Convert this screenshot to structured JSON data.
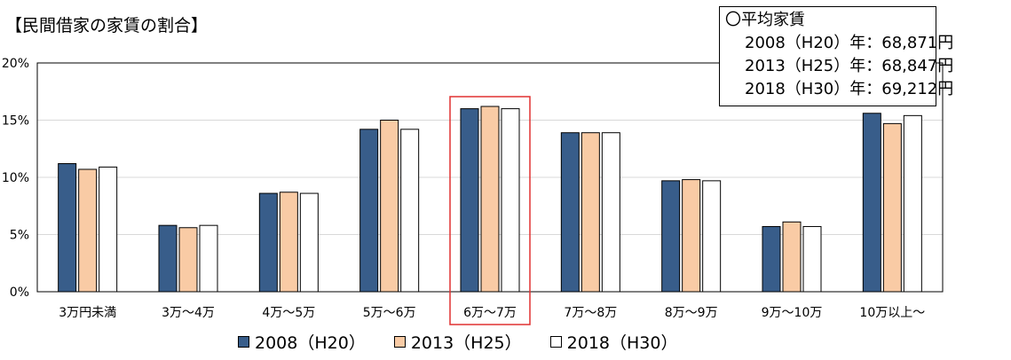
{
  "page": {
    "title": "【民間借家の家賃の割合】"
  },
  "average_box": {
    "header": "〇平均家賃",
    "lines": [
      "2008（H20）年：68,871円",
      "2013（H25）年：68,847円",
      "2018（H30）年：69,212円"
    ]
  },
  "colors": {
    "s2008": "#385d8a",
    "s2013": "#f9cba5",
    "s2018": "#ffffff",
    "highlight": "#e03030",
    "grid": "#d9d9d9"
  },
  "chart_data": {
    "type": "bar",
    "categories": [
      "3万円未満",
      "3万～4万",
      "4万～5万",
      "5万～6万",
      "6万～7万",
      "7万～8万",
      "8万～9万",
      "9万～10万",
      "10万以上～"
    ],
    "series": [
      {
        "name": "2008（H20）",
        "color": "#385d8a",
        "values": [
          11.2,
          5.8,
          8.6,
          14.2,
          16.0,
          13.9,
          9.7,
          5.7,
          15.6
        ]
      },
      {
        "name": "2013（H25）",
        "color": "#f9cba5",
        "values": [
          10.7,
          5.6,
          8.7,
          15.0,
          16.2,
          13.9,
          9.8,
          6.1,
          14.7
        ]
      },
      {
        "name": "2018（H30）",
        "color": "#ffffff",
        "values": [
          10.9,
          5.8,
          8.6,
          14.2,
          16.0,
          13.9,
          9.7,
          5.7,
          15.4
        ]
      }
    ],
    "yticks": [
      "0%",
      "5%",
      "10%",
      "15%",
      "20%"
    ],
    "ylim": [
      0,
      20
    ],
    "grid": true,
    "highlight_category": "6万～7万",
    "legend_position": "bottom"
  }
}
